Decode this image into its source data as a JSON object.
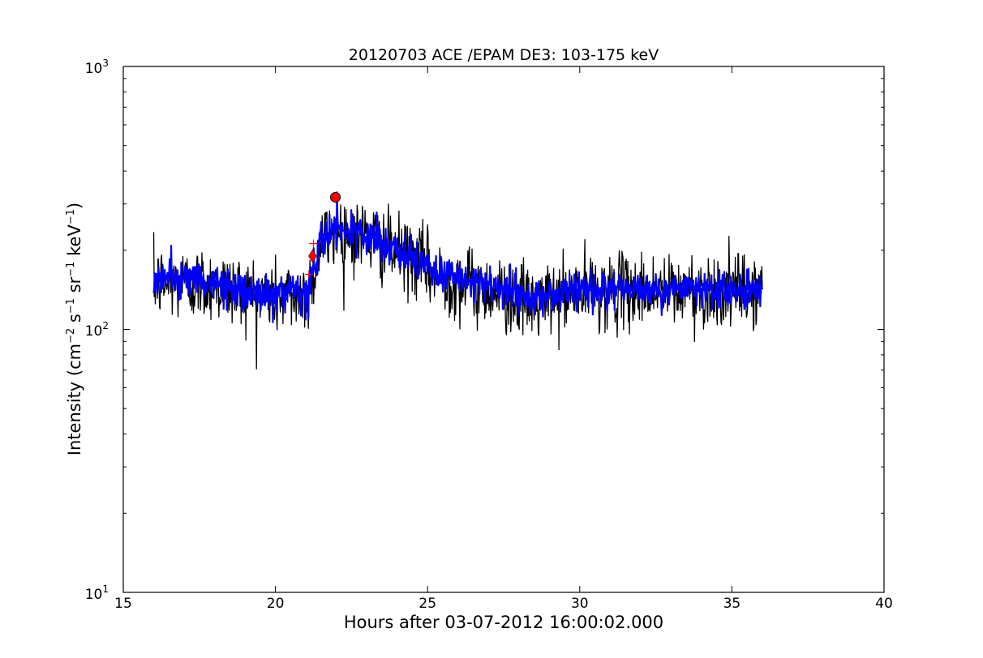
{
  "chart_data": {
    "type": "line",
    "title": "20120703 ACE /EPAM DE3: 103-175 keV",
    "xlabel": "Hours after 03-07-2012 16:00:02.000",
    "ylabel": {
      "prefix": "Intensity (cm",
      "exp1": "−2",
      "mid1": " s",
      "exp2": "−1",
      "mid2": " sr",
      "exp3": "−1",
      "mid3": " keV",
      "exp4": "−1",
      "suffix": ")"
    },
    "xlim": [
      15,
      40
    ],
    "ylim": [
      10,
      1000
    ],
    "yscale": "log",
    "xticks": [
      15,
      20,
      25,
      30,
      35,
      40
    ],
    "xtick_labels": [
      "15",
      "20",
      "25",
      "30",
      "35",
      "40"
    ],
    "yticks": [
      10,
      100,
      1000
    ],
    "ytick_labels": [
      {
        "base": "10",
        "exp": "1"
      },
      {
        "base": "10",
        "exp": "2"
      },
      {
        "base": "10",
        "exp": "3"
      }
    ],
    "grid": false,
    "legend": "none",
    "series": [
      {
        "style": "raw-noisy",
        "color": "#000000",
        "x_range": [
          16.0,
          36.0
        ],
        "profile": [
          [
            16.0,
            150
          ],
          [
            17.0,
            150
          ],
          [
            18.0,
            148
          ],
          [
            19.0,
            138
          ],
          [
            20.0,
            132
          ],
          [
            21.0,
            135
          ],
          [
            21.25,
            160
          ],
          [
            21.5,
            215
          ],
          [
            22.0,
            235
          ],
          [
            23.0,
            225
          ],
          [
            24.0,
            195
          ],
          [
            24.8,
            180
          ],
          [
            25.3,
            160
          ],
          [
            27.0,
            140
          ],
          [
            28.5,
            125
          ],
          [
            30.0,
            140
          ],
          [
            32.0,
            140
          ],
          [
            34.0,
            140
          ],
          [
            36.0,
            138
          ]
        ],
        "noise_log10": 0.07,
        "min_value": 63,
        "max_value": 305
      },
      {
        "style": "smoothed",
        "color": "#0000ff",
        "x_range": [
          16.0,
          36.0
        ],
        "profile": [
          [
            16.0,
            155
          ],
          [
            17.0,
            158
          ],
          [
            18.0,
            150
          ],
          [
            19.0,
            138
          ],
          [
            20.0,
            135
          ],
          [
            21.0,
            133
          ],
          [
            21.25,
            165
          ],
          [
            21.5,
            220
          ],
          [
            22.0,
            240
          ],
          [
            23.0,
            228
          ],
          [
            24.0,
            195
          ],
          [
            24.8,
            185
          ],
          [
            25.3,
            162
          ],
          [
            27.0,
            145
          ],
          [
            28.5,
            130
          ],
          [
            30.0,
            142
          ],
          [
            32.0,
            142
          ],
          [
            34.0,
            142
          ],
          [
            36.0,
            140
          ]
        ],
        "noise_log10": 0.035
      }
    ],
    "markers": [
      {
        "shape": "circle",
        "color": "#ff0000",
        "x": 21.97,
        "y": 318
      },
      {
        "shape": "diamond",
        "color": "#ff0000",
        "x": 21.22,
        "y": 190
      },
      {
        "shape": "plus",
        "color": "#ff0000",
        "x": 21.1,
        "y": 162
      },
      {
        "shape": "plus",
        "color": "#ff0000",
        "x": 21.25,
        "y": 212
      }
    ]
  }
}
